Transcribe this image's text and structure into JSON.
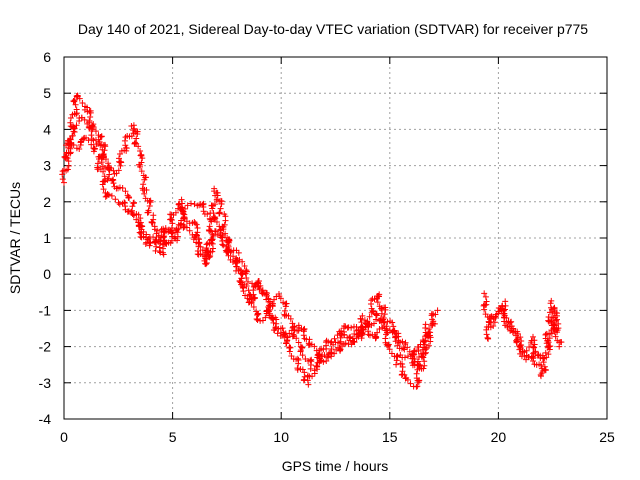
{
  "chart_data": {
    "type": "scatter",
    "title": "Day 140 of 2021, Sidereal Day-to-day VTEC variation (SDTVAR) for receiver p775",
    "xlabel": "GPS time / hours",
    "ylabel": "SDTVAR / TECUs",
    "xlim": [
      0,
      25
    ],
    "ylim": [
      -4,
      6
    ],
    "xticks": [
      0,
      5,
      10,
      15,
      20,
      25
    ],
    "yticks": [
      -4,
      -3,
      -2,
      -1,
      0,
      1,
      2,
      3,
      4,
      5,
      6
    ],
    "grid": true,
    "marker": "plus",
    "series": [
      {
        "name": "SDTVAR p775",
        "color": "#ff0000",
        "segments": [
          {
            "x": [
              0.0,
              0.3,
              0.6,
              1.0,
              1.3,
              1.7,
              2.0,
              2.4,
              2.8,
              3.2,
              3.5,
              3.8,
              4.0,
              4.3,
              4.6,
              5.0,
              5.3,
              5.6,
              6.0,
              6.3,
              6.6,
              7.0,
              7.3,
              7.6,
              8.0,
              8.3,
              8.6,
              9.0,
              9.3,
              9.6,
              10.0,
              10.4,
              10.8,
              11.2,
              11.6,
              12.0,
              12.4,
              12.8,
              13.2,
              13.6,
              14.0,
              14.4,
              14.8,
              15.2,
              15.6,
              16.0,
              16.4,
              16.8,
              17.2
            ],
            "y": [
              2.6,
              3.8,
              5.0,
              4.6,
              4.2,
              3.7,
              3.0,
              2.8,
              3.5,
              4.1,
              3.2,
              2.2,
              1.6,
              1.2,
              0.8,
              1.6,
              2.0,
              1.6,
              1.3,
              0.9,
              0.4,
              2.3,
              1.6,
              0.6,
              0.1,
              -0.4,
              -0.8,
              -0.2,
              -0.7,
              -1.2,
              -1.6,
              -2.0,
              -2.6,
              -3.0,
              -2.6,
              -2.0,
              -1.8,
              -1.6,
              -1.4,
              -1.7,
              -1.3,
              -0.5,
              -1.2,
              -1.6,
              -2.2,
              -2.4,
              -2.0,
              -1.4,
              -1.0
            ]
          },
          {
            "x": [
              0.2,
              0.6,
              1.0,
              1.5,
              2.0,
              2.5,
              3.0,
              3.4,
              3.8,
              4.2,
              4.6,
              5.0,
              5.5,
              6.0,
              6.5,
              7.0,
              7.5,
              8.0,
              8.5,
              9.0,
              9.5,
              10.0,
              10.5,
              11.0,
              11.5,
              12.0,
              12.5,
              13.0,
              13.5,
              14.0,
              14.5,
              15.0,
              15.4,
              15.8,
              16.2,
              16.6,
              17.0
            ],
            "y": [
              3.6,
              3.5,
              3.8,
              3.3,
              2.2,
              2.0,
              1.8,
              1.4,
              0.9,
              1.0,
              0.6,
              1.2,
              1.4,
              1.0,
              0.3,
              1.2,
              0.8,
              0.2,
              -0.6,
              -1.3,
              -0.9,
              -0.6,
              -1.5,
              -2.2,
              -2.6,
              -2.3,
              -2.1,
              -2.0,
              -1.7,
              -1.5,
              -1.0,
              -2.0,
              -2.5,
              -2.9,
              -3.1,
              -2.2,
              -1.3
            ]
          },
          {
            "x": [
              0.1,
              0.4,
              0.8,
              1.2,
              1.6,
              2.1,
              2.6,
              3.1,
              3.6,
              4.1,
              4.6,
              5.1,
              5.6,
              6.2,
              6.8,
              7.4,
              8.0,
              8.6,
              9.2,
              9.8,
              10.3,
              10.8,
              11.3,
              11.8,
              12.3,
              12.8,
              13.3,
              13.8,
              14.3,
              14.8,
              15.3,
              15.8,
              16.3,
              16.8
            ],
            "y": [
              3.2,
              3.9,
              4.3,
              4.0,
              3.6,
              2.6,
              2.4,
              2.0,
              1.2,
              0.7,
              1.3,
              1.0,
              1.8,
              2.0,
              1.6,
              1.0,
              0.5,
              -0.2,
              -0.4,
              -1.6,
              -1.8,
              -1.4,
              -1.8,
              -2.4,
              -2.2,
              -1.6,
              -1.9,
              -1.2,
              -1.8,
              -1.4,
              -1.7,
              -2.0,
              -2.6,
              -1.6
            ]
          },
          {
            "x": [
              19.3,
              19.6,
              20.0,
              20.3,
              20.6,
              21.0,
              21.3,
              21.6,
              22.0,
              22.3,
              22.6,
              22.8
            ],
            "y": [
              -0.6,
              -1.4,
              -1.0,
              -1.2,
              -1.6,
              -2.0,
              -2.4,
              -2.2,
              -2.8,
              -2.0,
              -1.2,
              -2.0
            ]
          },
          {
            "x": [
              19.4,
              19.8,
              20.2,
              20.5,
              20.9,
              21.2,
              21.5,
              21.9,
              22.2,
              22.5,
              22.7
            ],
            "y": [
              -1.8,
              -1.2,
              -0.8,
              -1.4,
              -1.8,
              -2.2,
              -1.8,
              -2.3,
              -2.1,
              -0.8,
              -1.6
            ]
          }
        ]
      }
    ]
  }
}
